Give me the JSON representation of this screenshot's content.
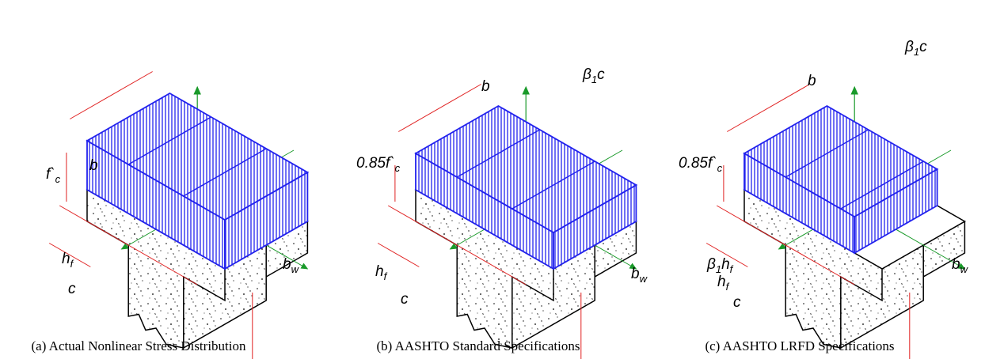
{
  "panels": [
    {
      "caption": "(a) Actual Nonlinear Stress Distribution",
      "labels": [
        {
          "text": [
            "b"
          ]
        },
        {
          "text": [
            "f`",
            "c"
          ]
        },
        {
          "text": [
            "h",
            "f"
          ]
        },
        {
          "text": [
            "c"
          ]
        },
        {
          "text": [
            "b",
            "w"
          ]
        }
      ]
    },
    {
      "caption": "(b) AASHTO Standard Specifications",
      "labels": [
        {
          "text": [
            "β",
            "1",
            "c"
          ]
        },
        {
          "text": [
            "b"
          ]
        },
        {
          "text": [
            "0.85f`",
            "c"
          ]
        },
        {
          "text": [
            "h",
            "f"
          ]
        },
        {
          "text": [
            "c"
          ]
        },
        {
          "text": [
            "b",
            "w"
          ]
        }
      ]
    },
    {
      "caption": "(c) AASHTO LRFD Specifications",
      "labels": [
        {
          "text": [
            "β",
            "1",
            "c"
          ]
        },
        {
          "text": [
            "b"
          ]
        },
        {
          "text": [
            "0.85f`",
            "c"
          ]
        },
        {
          "text": [
            "β",
            "1",
            "h",
            "f"
          ]
        },
        {
          "text": [
            "h",
            "f"
          ]
        },
        {
          "text": [
            "c"
          ]
        },
        {
          "text": [
            "b",
            "w"
          ]
        }
      ]
    }
  ]
}
